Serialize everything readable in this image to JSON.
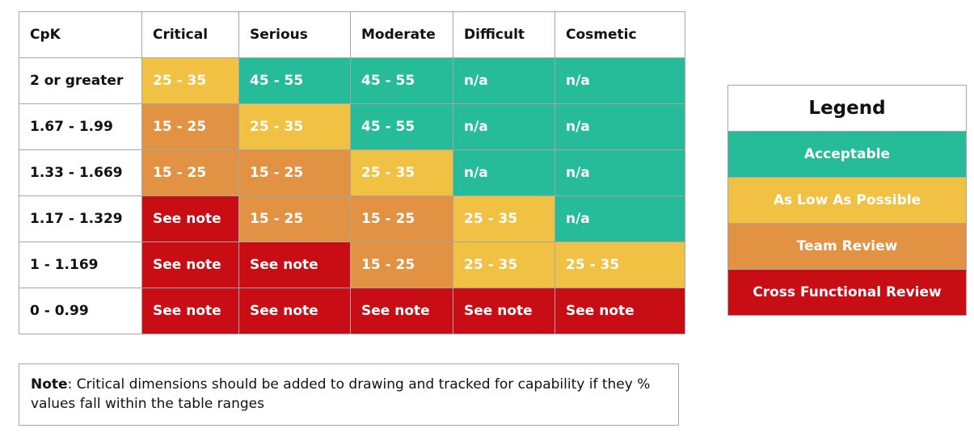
{
  "colors": {
    "acceptable": "#26bc9a",
    "alap": "#f1c143",
    "team_review": "#e29243",
    "cross_functional": "#c80d15"
  },
  "table": {
    "corner": "CpK",
    "columns": [
      "Critical",
      "Serious",
      "Moderate",
      "Difficult",
      "Cosmetic"
    ],
    "rows": [
      {
        "label": "2 or greater",
        "cells": [
          {
            "text": "25 - 35",
            "level": "alap"
          },
          {
            "text": "45 - 55",
            "level": "acceptable"
          },
          {
            "text": "45 - 55",
            "level": "acceptable"
          },
          {
            "text": "n/a",
            "level": "acceptable"
          },
          {
            "text": "n/a",
            "level": "acceptable"
          }
        ]
      },
      {
        "label": "1.67 - 1.99",
        "cells": [
          {
            "text": "15 - 25",
            "level": "team_review"
          },
          {
            "text": "25 - 35",
            "level": "alap"
          },
          {
            "text": "45 - 55",
            "level": "acceptable"
          },
          {
            "text": "n/a",
            "level": "acceptable"
          },
          {
            "text": "n/a",
            "level": "acceptable"
          }
        ]
      },
      {
        "label": "1.33 - 1.669",
        "cells": [
          {
            "text": "15 - 25",
            "level": "team_review"
          },
          {
            "text": "15 - 25",
            "level": "team_review"
          },
          {
            "text": "25 - 35",
            "level": "alap"
          },
          {
            "text": "n/a",
            "level": "acceptable"
          },
          {
            "text": "n/a",
            "level": "acceptable"
          }
        ]
      },
      {
        "label": "1.17 - 1.329",
        "cells": [
          {
            "text": "See note",
            "level": "cross_functional"
          },
          {
            "text": "15 - 25",
            "level": "team_review"
          },
          {
            "text": "15 - 25",
            "level": "team_review"
          },
          {
            "text": "25 - 35",
            "level": "alap"
          },
          {
            "text": "n/a",
            "level": "acceptable"
          }
        ]
      },
      {
        "label": "1 - 1.169",
        "cells": [
          {
            "text": "See note",
            "level": "cross_functional"
          },
          {
            "text": "See note",
            "level": "cross_functional"
          },
          {
            "text": "15 - 25",
            "level": "team_review"
          },
          {
            "text": "25 - 35",
            "level": "alap"
          },
          {
            "text": "25 - 35",
            "level": "alap"
          }
        ]
      },
      {
        "label": "0 - 0.99",
        "cells": [
          {
            "text": "See note",
            "level": "cross_functional"
          },
          {
            "text": "See note",
            "level": "cross_functional"
          },
          {
            "text": "See note",
            "level": "cross_functional"
          },
          {
            "text": "See note",
            "level": "cross_functional"
          },
          {
            "text": "See note",
            "level": "cross_functional"
          }
        ]
      }
    ]
  },
  "legend": {
    "title": "Legend",
    "items": [
      {
        "label": "Acceptable",
        "level": "acceptable"
      },
      {
        "label": "As Low As Possible",
        "level": "alap"
      },
      {
        "label": "Team Review",
        "level": "team_review"
      },
      {
        "label": "Cross Functional Review",
        "level": "cross_functional"
      }
    ]
  },
  "note": {
    "label": "Note",
    "text": ": Critical dimensions should be added to drawing and tracked for capability if they % values fall within the table ranges"
  }
}
